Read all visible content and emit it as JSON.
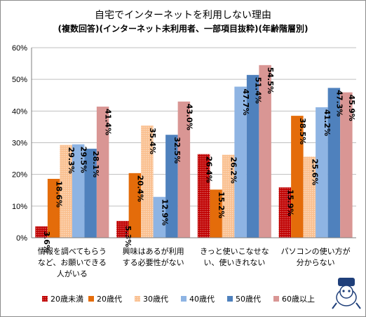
{
  "chart_data": {
    "type": "bar",
    "title": "自宅でインターネットを利用しない理由",
    "subtitle": "(複数回答)(インターネット未利用者、一部項目抜粋)(年齢階層別)",
    "categories": [
      [
        "情報を調べてもらう",
        "など、お願いできる",
        "人がいる"
      ],
      [
        "興味はあるが利用",
        "する必要性がない"
      ],
      [
        "きっと使いこなせな",
        "い、使いきれない"
      ],
      [
        "パソコンの使い方が",
        "分からない"
      ]
    ],
    "yticks": [
      "0%",
      "10%",
      "20%",
      "30%",
      "40%",
      "50%",
      "60%"
    ],
    "ylim": [
      0,
      60
    ],
    "grid": true,
    "legend_position": "bottom",
    "series": [
      {
        "name": "20歳未満",
        "color": "#c00000",
        "pattern": "dots",
        "values": [
          3.6,
          5.3,
          26.4,
          15.9
        ],
        "labels": [
          "3.6%",
          "5.3%",
          "26.4%",
          "15.9%"
        ]
      },
      {
        "name": "20歳代",
        "color": "#e46c0a",
        "pattern": "solid",
        "values": [
          18.6,
          20.4,
          15.2,
          38.5
        ],
        "labels": [
          "18.6%",
          "20.4%",
          "15.2%",
          "38.5%"
        ]
      },
      {
        "name": "30歳代",
        "color": "#fac090",
        "pattern": "dots",
        "values": [
          29.3,
          35.4,
          26.2,
          25.6
        ],
        "labels": [
          "29.3%",
          "35.4%",
          "26.2%",
          "25.6%"
        ]
      },
      {
        "name": "40歳代",
        "color": "#8eb4e3",
        "pattern": "solid",
        "values": [
          29.5,
          12.9,
          47.7,
          41.2
        ],
        "labels": [
          "29.5%",
          "12.9%",
          "47.7%",
          "41.2%"
        ]
      },
      {
        "name": "50歳代",
        "color": "#4f81bd",
        "pattern": "solid",
        "values": [
          28.1,
          32.5,
          51.4,
          47.3
        ],
        "labels": [
          "28.1%",
          "32.5%",
          "51.4%",
          "47.3%"
        ]
      },
      {
        "name": "60歳以上",
        "color": "#d99694",
        "pattern": "solid",
        "values": [
          41.4,
          43.0,
          54.5,
          45.9
        ],
        "labels": [
          "41.4%",
          "43.0%",
          "54.5%",
          "45.9%"
        ]
      }
    ]
  }
}
